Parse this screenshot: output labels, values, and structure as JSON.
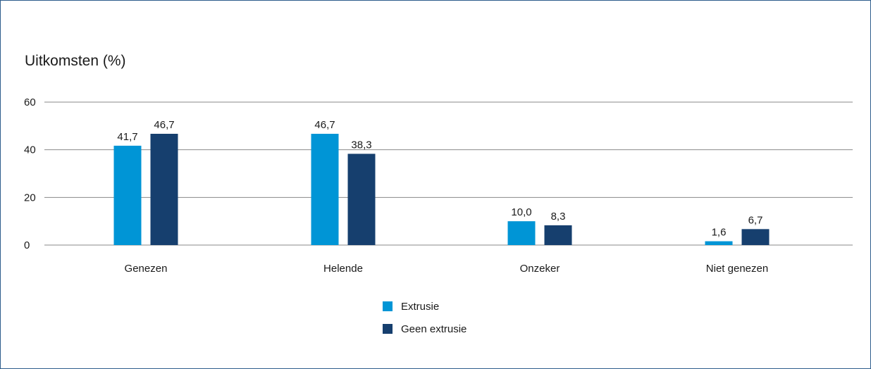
{
  "chart_data": {
    "type": "bar",
    "title": "Uitkomsten (%)",
    "categories": [
      "Genezen",
      "Helende",
      "Onzeker",
      "Niet genezen"
    ],
    "series": [
      {
        "name": "Extrusie",
        "values": [
          41.7,
          46.7,
          10.0,
          1.6
        ],
        "labels": [
          "41,7",
          "46,7",
          "10,0",
          "1,6"
        ],
        "color": "#0095d6"
      },
      {
        "name": "Geen extrusie",
        "values": [
          46.7,
          38.3,
          8.3,
          6.7
        ],
        "labels": [
          "46,7",
          "38,3",
          "8,3",
          "6,7"
        ],
        "color": "#163f6e"
      }
    ],
    "yticks": [
      0,
      20,
      40,
      60
    ],
    "ytick_labels": [
      "0",
      "20",
      "40",
      "60"
    ],
    "ylim": [
      0,
      60
    ],
    "xlabel": "",
    "ylabel": "",
    "grid": true,
    "legend_position": "bottom-center",
    "frame_color": "#2e5d8c",
    "grid_color": "#8a8a8a"
  }
}
